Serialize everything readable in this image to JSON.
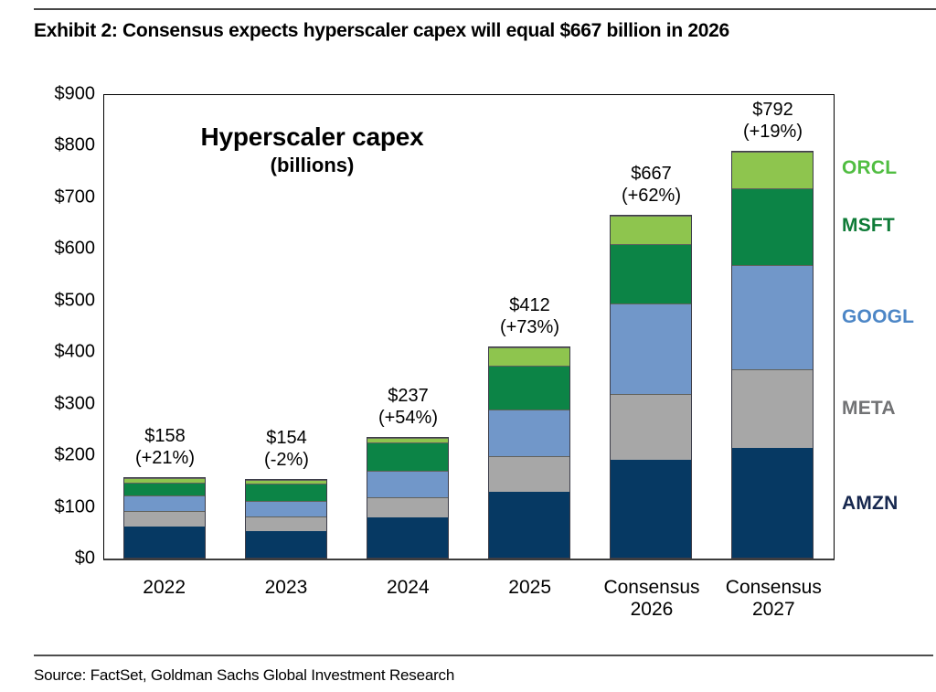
{
  "header": {
    "title": "Exhibit 2: Consensus expects hyperscaler capex will equal $667 billion in 2026"
  },
  "chart_data": {
    "type": "bar",
    "stacked": true,
    "title": "Hyperscaler capex",
    "subtitle": "(billions)",
    "ylim": [
      0,
      900
    ],
    "grid": false,
    "legend_position": "right",
    "y_ticks": [
      {
        "value": 0,
        "label": "$0"
      },
      {
        "value": 100,
        "label": "$100"
      },
      {
        "value": 200,
        "label": "$200"
      },
      {
        "value": 300,
        "label": "$300"
      },
      {
        "value": 400,
        "label": "$400"
      },
      {
        "value": 500,
        "label": "$500"
      },
      {
        "value": 600,
        "label": "$600"
      },
      {
        "value": 700,
        "label": "$700"
      },
      {
        "value": 800,
        "label": "$800"
      },
      {
        "value": 900,
        "label": "$900"
      }
    ],
    "categories": [
      {
        "label_lines": [
          "2022"
        ]
      },
      {
        "label_lines": [
          "2023"
        ]
      },
      {
        "label_lines": [
          "2024"
        ]
      },
      {
        "label_lines": [
          "2025"
        ]
      },
      {
        "label_lines": [
          "Consensus",
          "2026"
        ]
      },
      {
        "label_lines": [
          "Consensus",
          "2027"
        ]
      }
    ],
    "series": [
      {
        "name": "AMZN",
        "fill": "#063963",
        "legend_text_color": "#16274e",
        "values": [
          61,
          52,
          80,
          129,
          191,
          214
        ]
      },
      {
        "name": "META",
        "fill": "#a7a7a7",
        "legend_text_color": "#717274",
        "values": [
          32,
          30,
          39,
          70,
          128,
          153
        ]
      },
      {
        "name": "GOOGL",
        "fill": "#7197c9",
        "legend_text_color": "#4c86c6",
        "values": [
          31,
          31,
          53,
          91,
          177,
          203
        ]
      },
      {
        "name": "MSFT",
        "fill": "#0c8446",
        "legend_text_color": "#0e7b37",
        "values": [
          25,
          34,
          55,
          87,
          117,
          150
        ]
      },
      {
        "name": "ORCL",
        "fill": "#8ec54e",
        "legend_text_color": "#50bd41",
        "values": [
          9,
          7,
          10,
          35,
          54,
          72
        ]
      }
    ],
    "bar_total_labels": [
      [
        "$158",
        "(+21%)"
      ],
      [
        "$154",
        "(-2%)"
      ],
      [
        "$237",
        "(+54%)"
      ],
      [
        "$412",
        "(+73%)"
      ],
      [
        "$667",
        "(+62%)"
      ],
      [
        "$792",
        "(+19%)"
      ]
    ]
  },
  "footer": {
    "source": "Source: FactSet, Goldman Sachs Global Investment Research"
  }
}
